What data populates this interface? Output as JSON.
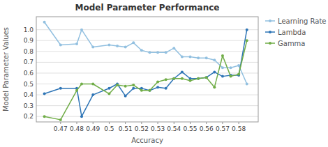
{
  "chart_data": {
    "type": "line",
    "title": "Model Parameter Performance",
    "x_label": "Accuracy",
    "y_label": "Model Parameter Values",
    "x": [
      0.46,
      0.47,
      0.48,
      0.483,
      0.49,
      0.5,
      0.505,
      0.51,
      0.515,
      0.52,
      0.525,
      0.53,
      0.535,
      0.54,
      0.545,
      0.55,
      0.555,
      0.56,
      0.565,
      0.57,
      0.575,
      0.58,
      0.585
    ],
    "series": [
      {
        "name": "Learning Rate",
        "color": "#92C0E0",
        "values": [
          1.07,
          0.86,
          0.87,
          1.0,
          0.84,
          0.86,
          0.85,
          0.84,
          0.88,
          0.81,
          0.79,
          0.79,
          0.79,
          0.83,
          0.75,
          0.75,
          0.74,
          0.74,
          0.72,
          0.65,
          0.65,
          0.67,
          0.5
        ]
      },
      {
        "name": "Lambda",
        "color": "#2E75B6",
        "values": [
          0.41,
          0.46,
          0.46,
          0.2,
          0.4,
          0.46,
          0.5,
          0.39,
          0.46,
          0.46,
          0.44,
          0.47,
          0.46,
          0.55,
          0.61,
          0.55,
          0.55,
          0.56,
          0.61,
          0.57,
          0.58,
          0.58,
          1.0
        ]
      },
      {
        "name": "Gamma",
        "color": "#70AD47",
        "values": [
          0.2,
          0.17,
          0.44,
          0.5,
          0.5,
          0.41,
          0.49,
          0.48,
          0.49,
          0.44,
          0.44,
          0.52,
          0.54,
          0.55,
          0.55,
          0.53,
          0.55,
          0.56,
          0.47,
          0.76,
          0.57,
          0.59,
          0.9
        ]
      }
    ],
    "xlim": [
      0.455,
      0.592
    ],
    "ylim": [
      0.15,
      1.12
    ],
    "xticks": [
      0.47,
      0.48,
      0.49,
      0.5,
      0.51,
      0.52,
      0.53,
      0.54,
      0.55,
      0.56,
      0.57,
      0.58
    ],
    "yticks": [
      0.2,
      0.3,
      0.4,
      0.5,
      0.6,
      0.7,
      0.8,
      0.9,
      {
        "value": 1.0,
        "label": "1.0"
      }
    ],
    "grid": true,
    "legend": "right",
    "marker": "circle"
  }
}
